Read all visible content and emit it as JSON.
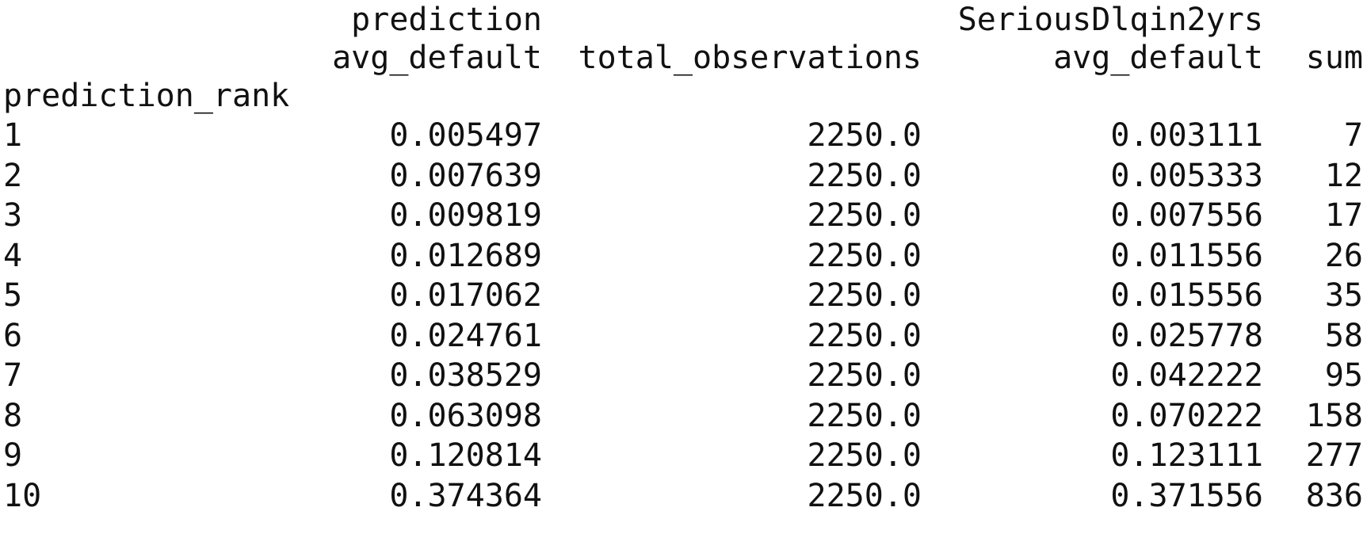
{
  "table": {
    "header_row1": {
      "col1": "prediction",
      "col3": "SeriousDlqin2yrs"
    },
    "header_row2": {
      "col1": "avg_default",
      "col2": "total_observations",
      "col3": "avg_default",
      "col4": "sum"
    },
    "index_name": "prediction_rank",
    "rows": [
      {
        "rank": "1",
        "pred_avg": "0.005497",
        "total": "2250.0",
        "sdl_avg": "0.003111",
        "sum": "7"
      },
      {
        "rank": "2",
        "pred_avg": "0.007639",
        "total": "2250.0",
        "sdl_avg": "0.005333",
        "sum": "12"
      },
      {
        "rank": "3",
        "pred_avg": "0.009819",
        "total": "2250.0",
        "sdl_avg": "0.007556",
        "sum": "17"
      },
      {
        "rank": "4",
        "pred_avg": "0.012689",
        "total": "2250.0",
        "sdl_avg": "0.011556",
        "sum": "26"
      },
      {
        "rank": "5",
        "pred_avg": "0.017062",
        "total": "2250.0",
        "sdl_avg": "0.015556",
        "sum": "35"
      },
      {
        "rank": "6",
        "pred_avg": "0.024761",
        "total": "2250.0",
        "sdl_avg": "0.025778",
        "sum": "58"
      },
      {
        "rank": "7",
        "pred_avg": "0.038529",
        "total": "2250.0",
        "sdl_avg": "0.042222",
        "sum": "95"
      },
      {
        "rank": "8",
        "pred_avg": "0.063098",
        "total": "2250.0",
        "sdl_avg": "0.070222",
        "sum": "158"
      },
      {
        "rank": "9",
        "pred_avg": "0.120814",
        "total": "2250.0",
        "sdl_avg": "0.123111",
        "sum": "277"
      },
      {
        "rank": "10",
        "pred_avg": "0.374364",
        "total": "2250.0",
        "sdl_avg": "0.371556",
        "sum": "836"
      }
    ]
  }
}
